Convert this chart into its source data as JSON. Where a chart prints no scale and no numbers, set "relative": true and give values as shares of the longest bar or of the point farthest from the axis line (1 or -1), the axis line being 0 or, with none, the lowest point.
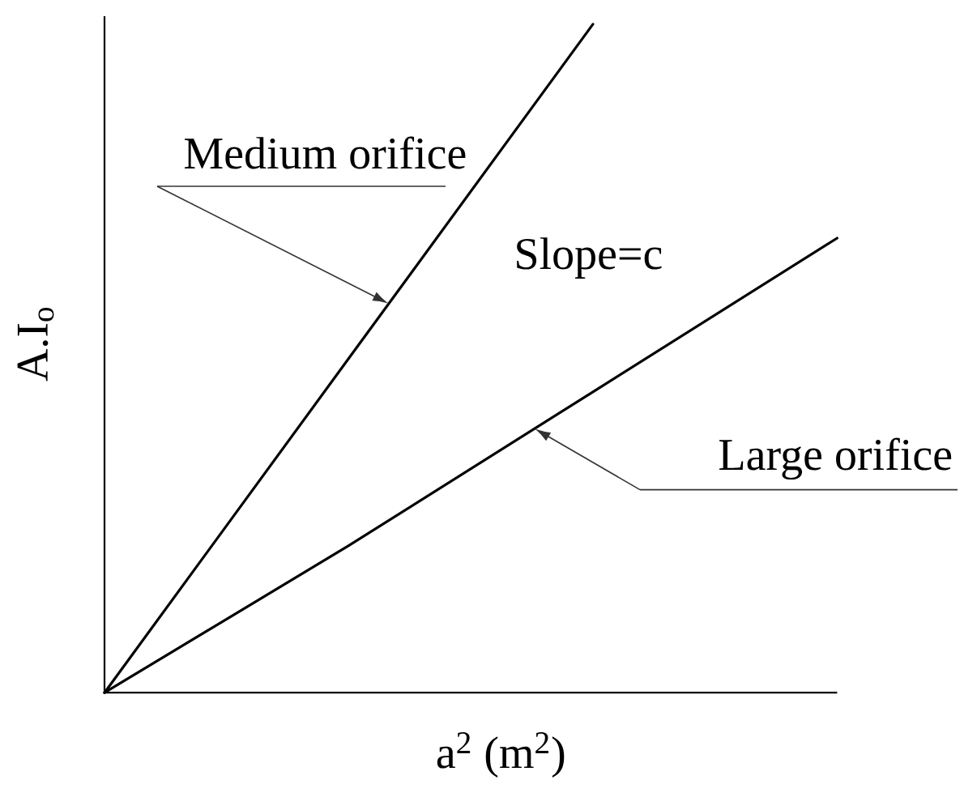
{
  "chart_data": {
    "type": "line",
    "relative": true,
    "xlabel": "a$^{2}$ (m$^{2}$)",
    "ylabel": "A.I$_{o}$",
    "categories": [
      null,
      null,
      null,
      null
    ],
    "series": [
      {
        "name": "Medium orifice",
        "color": "#000000",
        "values": [
          0,
          0.5,
          1,
          null
        ]
      },
      {
        "name": "Large orifice",
        "color": "#000000",
        "values": [
          0,
          0.22,
          0.45,
          0.68
        ]
      }
    ],
    "annotations": [
      "Slope=c"
    ]
  }
}
